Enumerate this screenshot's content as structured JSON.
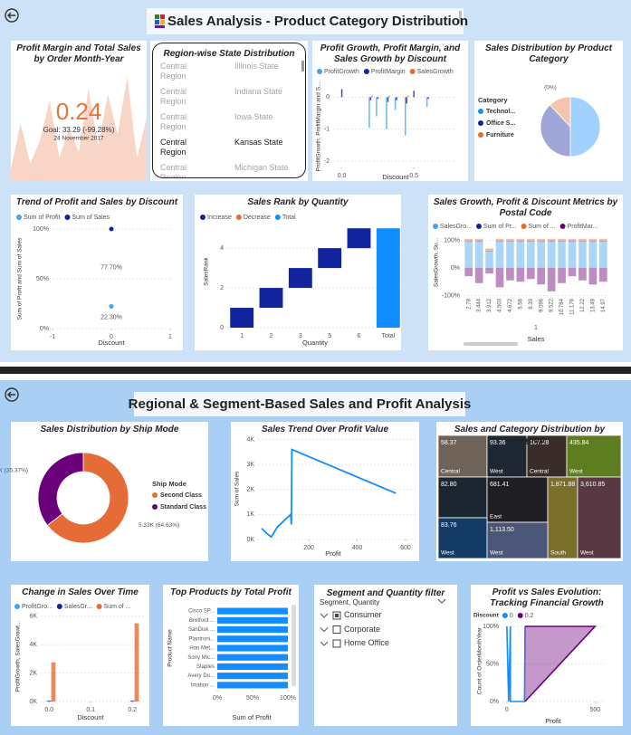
{
  "dashboards": [
    {
      "title": "Sales Analysis - Product Category Distribution"
    },
    {
      "title": "Regional & Segment-Based Sales and Profit Analysis"
    }
  ],
  "state_table": {
    "title": "Region-wise State Distribution",
    "rows": [
      [
        "Central Region",
        "Illinois State"
      ],
      [
        "Central Region",
        "Indiana State"
      ],
      [
        "Central Region",
        "Iowa State"
      ],
      [
        "Central Region",
        "Kansas State"
      ],
      [
        "Central Region",
        "Michigan State"
      ]
    ],
    "selected_row": 3
  },
  "segment_filter": {
    "title": "Segment and Quantity filter",
    "header": "Segment, Quantity",
    "items": [
      {
        "label": "Consumer",
        "state": "partial"
      },
      {
        "label": "Corporate",
        "state": "off"
      },
      {
        "label": "Home Office",
        "state": "off"
      }
    ]
  },
  "chart_data": [
    {
      "type": "kpi",
      "title": "Profit Margin and Total Sales by Order Month-Year",
      "value": 0.24,
      "goal": "Goal: 33.29 (-99.28%)",
      "date": "24 November 2017",
      "color": "#f8d5c6",
      "trend": [
        0.1,
        0.5,
        0.15,
        0.35,
        0.7,
        0.2,
        0.45,
        0.25,
        0.8,
        0.3,
        0.75,
        0.4,
        0.9,
        0.2,
        0.55
      ]
    },
    {
      "type": "bar",
      "title": "Profit Growth, Profit Margin, and Sales Growth by Discount",
      "x_label": "Discount",
      "y_label": "ProfitGrowth, ProfitMargin and S...",
      "x": [
        0,
        0.2,
        0.25,
        0.32,
        0.38,
        0.45,
        0.5,
        0.6
      ],
      "xlim": [
        -0.06,
        0.8
      ],
      "xticks": [
        {
          "value": 0,
          "label": "0.0"
        },
        {
          "value": 0.5,
          "label": "0.5"
        }
      ],
      "ylim": [
        -2.2,
        0.35
      ],
      "yticks": [
        -2,
        -1,
        0
      ],
      "series": [
        {
          "name": "ProfitGrowth",
          "color": "#41a5ee",
          "values": [
            0,
            -0.95,
            -0.6,
            -1.0,
            -0.4,
            -1.2,
            0,
            -0.3
          ]
        },
        {
          "name": "ProfitMargin",
          "color": "#12239e",
          "values": [
            0.25,
            -0.1,
            -0.05,
            -0.15,
            -0.1,
            -0.2,
            0.2,
            -0.05
          ]
        },
        {
          "name": "SalesGrowth",
          "color": "#e66c37",
          "values": [
            0,
            0.05,
            0,
            0.05,
            0,
            0.05,
            0,
            0
          ]
        }
      ]
    },
    {
      "type": "pie",
      "title": "Sales Distribution by Product Category",
      "legend_title": "Category",
      "categories": [
        "Technol...",
        "Office S...",
        "Furniture"
      ],
      "values": [
        50,
        38,
        12
      ],
      "colors": [
        "#118dff",
        "#12239e",
        "#e66c37"
      ],
      "annotation": "(0%)"
    },
    {
      "type": "scatter",
      "title": "Trend of Profit and Sales by Discount",
      "x_label": "Discount",
      "y_label": "Sum of Profit and Sum of Sales",
      "x": [
        0
      ],
      "xlim": [
        -1,
        1
      ],
      "xticks": [
        -1,
        0,
        1
      ],
      "ylim": [
        0,
        100
      ],
      "yticks": [
        {
          "value": 0,
          "label": "0%"
        },
        {
          "value": 50,
          "label": "50%"
        },
        {
          "value": 100,
          "label": "100%"
        }
      ],
      "stacked": true,
      "series": [
        {
          "name": "Sum of Profit",
          "color": "#41a5ee",
          "values": [
            22.3
          ],
          "value_labels": [
            "22.30%"
          ]
        },
        {
          "name": "Sum of Sales",
          "color": "#12239e",
          "values": [
            77.7
          ],
          "value_labels": [
            "77.70%"
          ]
        }
      ]
    },
    {
      "type": "waterfall",
      "title": "Sales Rank by Quantity",
      "x_label": "Quantity",
      "y_label": "SalesRank",
      "categories": [
        "1",
        "2",
        "3",
        "5",
        "6",
        "Total"
      ],
      "values": [
        1,
        1,
        1,
        1,
        1,
        5
      ],
      "ylim": [
        0,
        5.1
      ],
      "yticks": [
        0,
        2,
        4
      ],
      "legend": [
        {
          "name": "Increase",
          "color": "#12239e"
        },
        {
          "name": "Decrease",
          "color": "#e66c37"
        },
        {
          "name": "Total",
          "color": "#118dff"
        }
      ]
    },
    {
      "type": "stacked_bar",
      "title": "Sales Growth, Profit & Discount Metrics by Postal Code",
      "x_label": "Sales",
      "y_label": "SalesGrowth, Su...",
      "annotation": "1",
      "categories": [
        "2.78",
        "3.444",
        "3.912",
        "4.503",
        "4.672",
        "5.56",
        "8.39",
        "9.096",
        "9.522",
        "10.784",
        "11.176",
        "12.22",
        "13.48",
        "14.97"
      ],
      "ylim": [
        -105,
        125
      ],
      "yticks": [
        {
          "value": 100,
          "label": "100%"
        },
        {
          "value": 0,
          "label": "0%"
        },
        {
          "value": -100,
          "label": "-100%"
        }
      ],
      "series": [
        {
          "name": "SalesGro...",
          "color": "#41a5ee",
          "values": [
            95,
            95,
            60,
            95,
            95,
            95,
            95,
            95,
            95,
            95,
            95,
            95,
            95,
            95
          ]
        },
        {
          "name": "Sum of Pr...",
          "color": "#12239e",
          "values": [
            3,
            3,
            3,
            3,
            3,
            3,
            3,
            3,
            3,
            3,
            3,
            3,
            3,
            3
          ]
        },
        {
          "name": "Sum of ...",
          "color": "#e66c37",
          "values": [
            8,
            8,
            8,
            8,
            8,
            8,
            8,
            8,
            8,
            8,
            8,
            8,
            8,
            8
          ]
        },
        {
          "name": "ProfitMar...",
          "color": "#6b007b",
          "values": [
            -30,
            -55,
            -20,
            -70,
            -45,
            -50,
            -40,
            -60,
            -85,
            -55,
            -30,
            -45,
            -60,
            -50
          ]
        }
      ]
    },
    {
      "type": "donut",
      "title": "Sales Distribution by Ship Mode",
      "legend_title": "Ship Mode",
      "categories": [
        "Second Class",
        "Standard Class"
      ],
      "values": [
        5330,
        2920
      ],
      "value_labels": [
        "5.33K (64.63%)",
        "2.92K (35.37%)"
      ],
      "colors": [
        "#e66c37",
        "#6b007b"
      ]
    },
    {
      "type": "line",
      "title": "Sales Trend Over Profit Value",
      "x_label": "Profit",
      "y_label": "Sum of Sales",
      "color": "#118dff",
      "x": [
        5,
        25,
        45,
        70,
        125,
        128,
        130,
        560
      ],
      "values": [
        450,
        250,
        100,
        500,
        1000,
        600,
        3600,
        1850
      ],
      "xlim": [
        -10,
        645
      ],
      "xticks": [
        200,
        400,
        600
      ],
      "ylim": [
        0,
        4200
      ],
      "yticks": [
        {
          "value": 0,
          "label": "0K"
        },
        {
          "value": 1000,
          "label": "1K"
        },
        {
          "value": 2000,
          "label": "2K"
        },
        {
          "value": 3000,
          "label": "3K"
        },
        {
          "value": 4000,
          "label": "4K"
        }
      ]
    },
    {
      "type": "treemap",
      "title": "Sales and Category Distribution by Region",
      "values": [
        58.37,
        93.36,
        167.28,
        435.84,
        82.8,
        681.41,
        1871.88,
        3610.85,
        83.76,
        1113.5
      ],
      "value_labels": [
        "58.37",
        "93.36",
        "167.28",
        "435.84",
        "82.80",
        "681.41",
        "1,871.88",
        "3,610.85",
        "83.76",
        "1,113.50"
      ],
      "categories": [
        "Central",
        "West",
        "Central",
        "West",
        null,
        "East",
        "South",
        "West",
        "West",
        "West"
      ]
    },
    {
      "type": "bar",
      "title": "Change in Sales Over Time",
      "x_label": "Discount",
      "y_label": "ProfitGrowth, SalesGrowt...",
      "x": [
        0,
        0.2
      ],
      "xlim": [
        -0.02,
        0.23
      ],
      "xticks": [
        {
          "value": 0,
          "label": "0.0"
        },
        {
          "value": 0.1,
          "label": "0.1"
        },
        {
          "value": 0.2,
          "label": "0.2"
        }
      ],
      "ylim": [
        0,
        6300
      ],
      "yticks": [
        {
          "value": 0,
          "label": "0K"
        },
        {
          "value": 2000,
          "label": "2K"
        },
        {
          "value": 4000,
          "label": "4K"
        },
        {
          "value": 6000,
          "label": "6K"
        }
      ],
      "series": [
        {
          "name": "ProfitGro...",
          "color": "#41a5ee",
          "values": [
            0,
            0
          ]
        },
        {
          "name": "SalesGr...",
          "color": "#12239e",
          "values": [
            60,
            60
          ]
        },
        {
          "name": "Sum of ...",
          "color": "#e66c37",
          "values": [
            2750,
            5500
          ]
        }
      ]
    },
    {
      "type": "hbar",
      "title": "Top Products by Total Profit",
      "x_label": "Sum of Profit",
      "y_label": "Product Name",
      "color": "#118dff",
      "categories": [
        "Cisco SP...",
        "Bretford ...",
        "SanDisk ...",
        "Plantroni...",
        "Hon Met...",
        "Sony Mic...",
        "Staples",
        "Avery Du...",
        "Imation ..."
      ],
      "values": [
        100,
        100,
        100,
        100,
        100,
        100,
        100,
        100,
        100
      ],
      "xlim": [
        0,
        100
      ],
      "xticks": [
        {
          "value": 0,
          "label": "0%"
        },
        {
          "value": 50,
          "label": "50%"
        },
        {
          "value": 100,
          "label": "100%"
        }
      ]
    },
    {
      "type": "area",
      "title": "Profit vs Sales Evolution: Tracking Financial Growth",
      "legend_title": "Discount",
      "x_label": "Profit",
      "y_label": "Count of OrderMonthYear",
      "xlim": [
        -25,
        555
      ],
      "xticks": [
        0,
        500
      ],
      "ylim": [
        0,
        100
      ],
      "yticks": [
        {
          "value": 0,
          "label": "0%"
        },
        {
          "value": 50,
          "label": "50%"
        },
        {
          "value": 100,
          "label": "100%"
        }
      ],
      "series": [
        {
          "name": "0",
          "color": "#118dff",
          "x": [
            0,
            10,
            20,
            20,
            100,
            103
          ],
          "values": [
            100,
            0,
            100,
            0,
            0,
            100
          ]
        },
        {
          "name": "0.2",
          "color": "#6b007b",
          "x": [
            103,
            500,
            500,
            103
          ],
          "values": [
            100,
            100,
            100,
            0
          ]
        }
      ]
    }
  ]
}
